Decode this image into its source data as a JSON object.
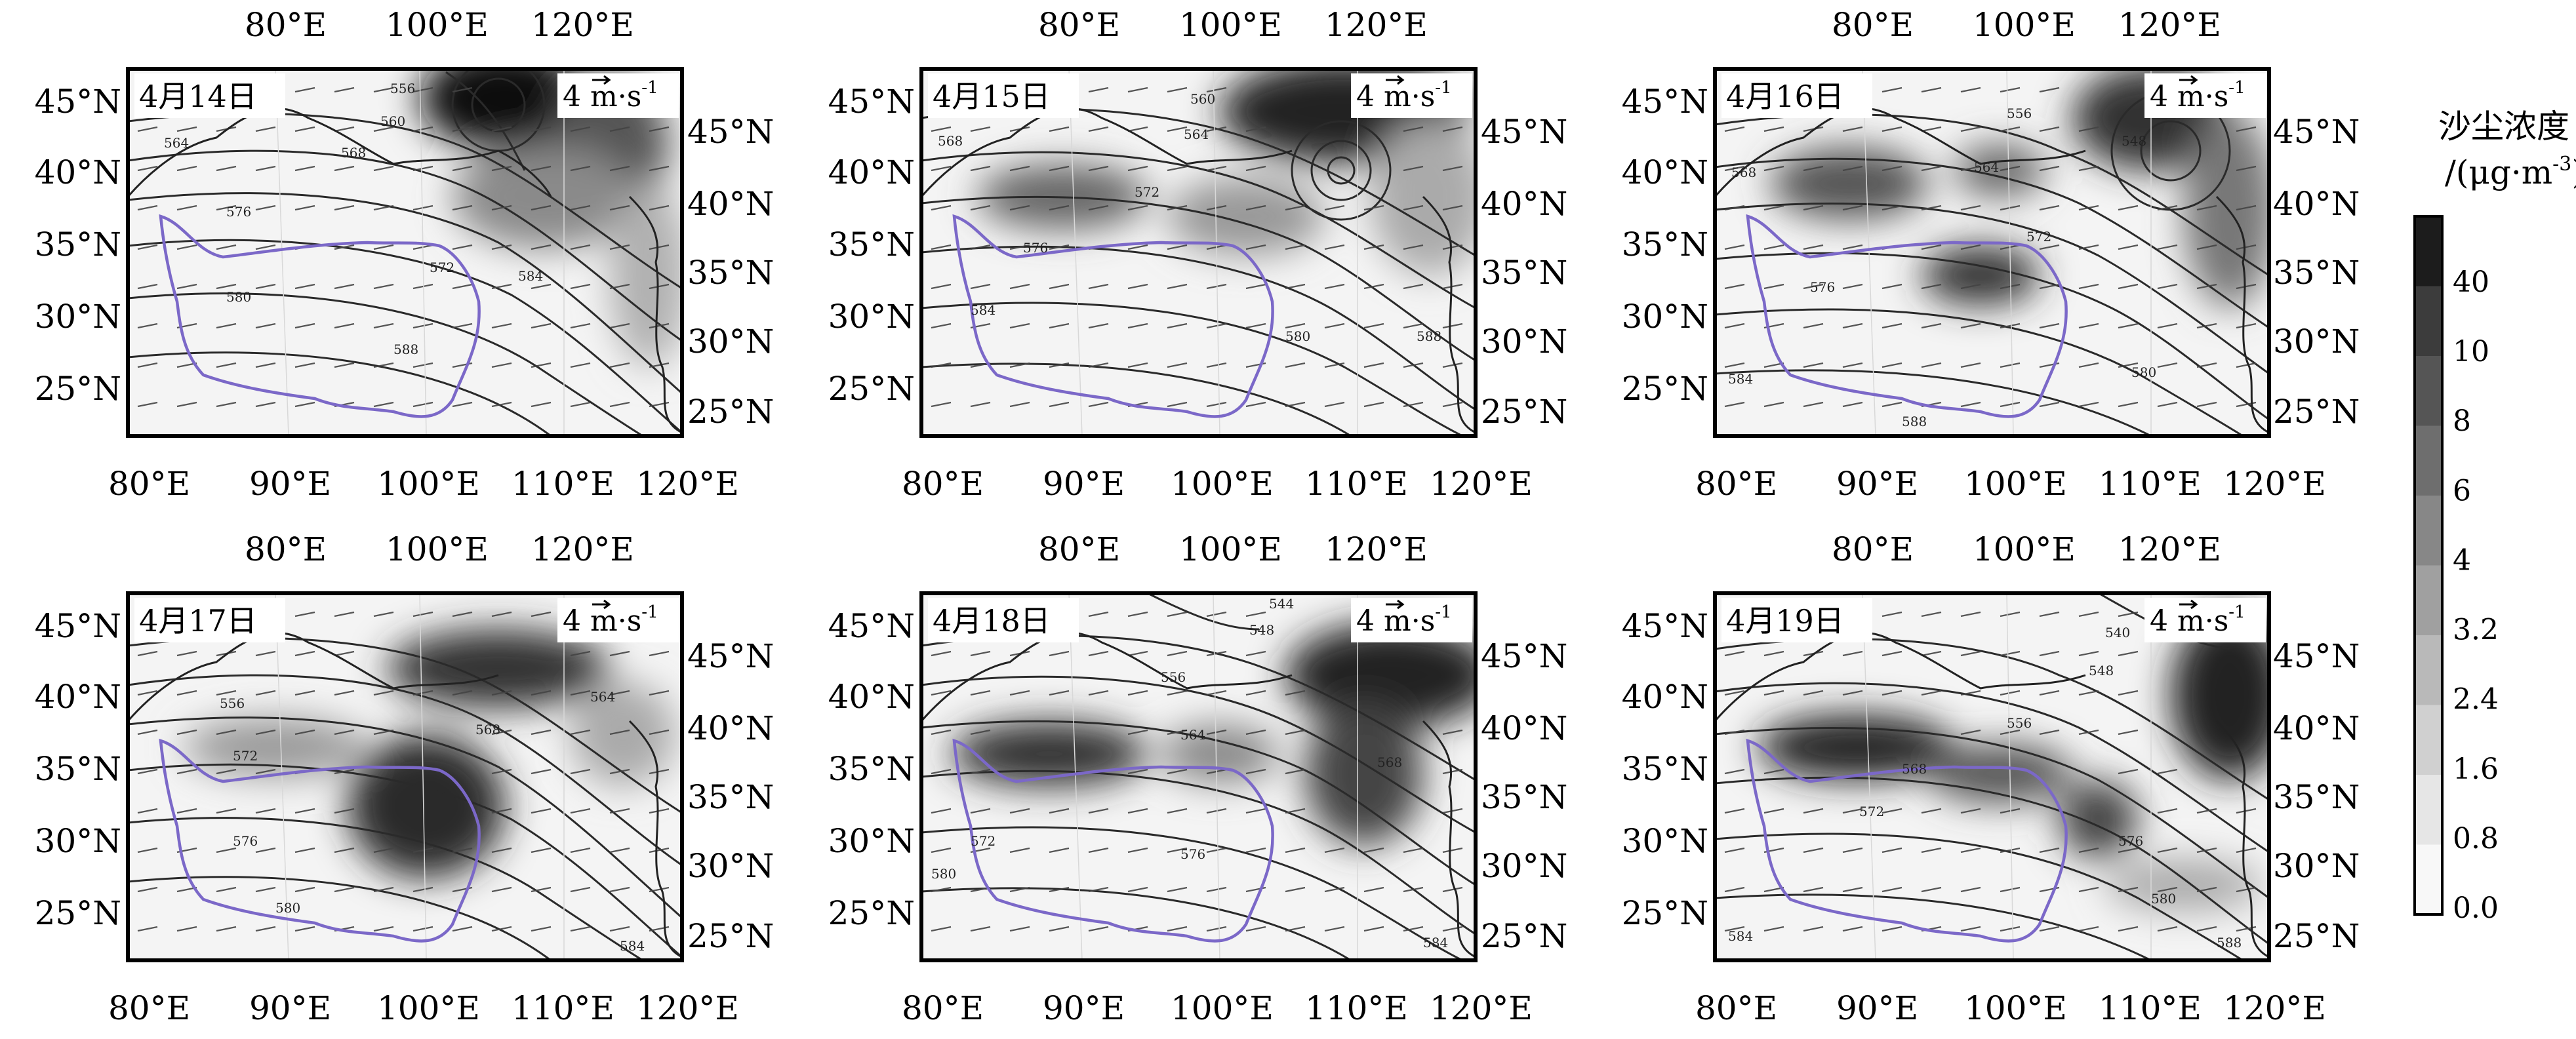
{
  "panels": [
    {
      "date": "4月14日",
      "contour_labels": [
        "556",
        "560",
        "564",
        "568",
        "576",
        "572",
        "580",
        "584",
        "588"
      ]
    },
    {
      "date": "4月15日",
      "contour_labels": [
        "560",
        "564",
        "568",
        "572",
        "576",
        "580",
        "584",
        "588"
      ]
    },
    {
      "date": "4月16日",
      "contour_labels": [
        "548",
        "556",
        "564",
        "568",
        "572",
        "576",
        "580",
        "584",
        "588"
      ]
    },
    {
      "date": "4月17日",
      "contour_labels": [
        "556",
        "564",
        "568",
        "572",
        "576",
        "580",
        "584"
      ]
    },
    {
      "date": "4月18日",
      "contour_labels": [
        "544",
        "548",
        "556",
        "564",
        "568",
        "572",
        "576",
        "580",
        "584"
      ]
    },
    {
      "date": "4月19日",
      "contour_labels": [
        "540",
        "548",
        "556",
        "568",
        "572",
        "576",
        "580",
        "584",
        "588"
      ]
    }
  ],
  "wind_key": {
    "value": "4",
    "unit_text": "m·s",
    "unit_exp": "-1"
  },
  "axes": {
    "bottom_ticks": [
      "80°E",
      "90°E",
      "100°E",
      "110°E",
      "120°E"
    ],
    "top_ticks": [
      "80°E",
      "100°E",
      "120°E"
    ],
    "left_ticks": [
      "45°N",
      "40°N",
      "35°N",
      "30°N",
      "25°N"
    ],
    "right_ticks": [
      "45°N",
      "40°N",
      "35°N",
      "30°N",
      "25°N"
    ]
  },
  "colorbar": {
    "title_line1": "沙尘浓度",
    "title_line2_prefix": "/(μg·m",
    "title_line2_exp": "-3",
    "title_line2_suffix": ")",
    "ticks": [
      "40",
      "10",
      "8",
      "6",
      "4",
      "3.2",
      "2.4",
      "1.6",
      "0.8",
      "0.0"
    ],
    "colors": [
      "#1c1c1c",
      "#3c3c3c",
      "#555555",
      "#6e6e6e",
      "#878787",
      "#a0a0a0",
      "#b9b9b9",
      "#d0d0d0",
      "#e6e6e6",
      "#f8f8f8"
    ]
  },
  "colors": {
    "boundary": "#7b68c8",
    "contour": "#2a2a2a",
    "frame": "#000000"
  }
}
